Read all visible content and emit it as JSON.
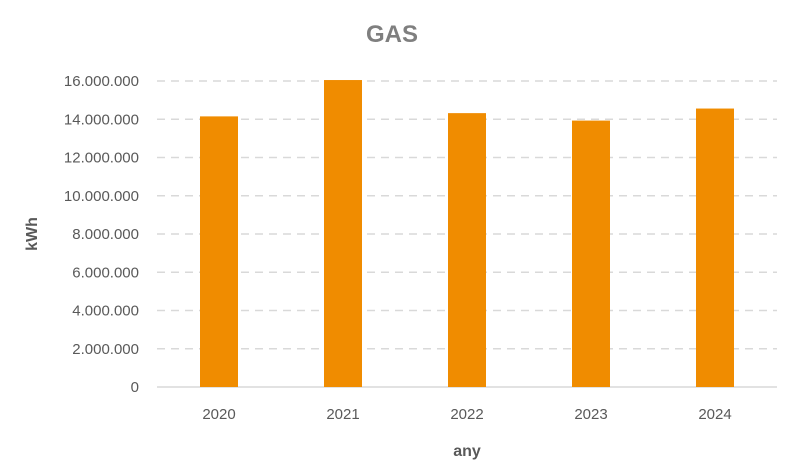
{
  "chart_data": {
    "type": "bar",
    "title": "GAS",
    "xlabel": "any",
    "ylabel": "kWh",
    "categories": [
      "2020",
      "2021",
      "2022",
      "2023",
      "2024"
    ],
    "series": [
      {
        "values": [
          14150000,
          16050000,
          14320000,
          13930000,
          14560000
        ]
      }
    ],
    "ylim": [
      0,
      16000000
    ],
    "yticks": [
      0,
      2000000,
      4000000,
      6000000,
      8000000,
      10000000,
      12000000,
      14000000,
      16000000
    ],
    "ytick_labels": [
      "0",
      "2.000.000",
      "4.000.000",
      "6.000.000",
      "8.000.000",
      "10.000.000",
      "12.000.000",
      "14.000.000",
      "16.000.000"
    ],
    "bar_color": "#f08c00",
    "grid": true,
    "legend": "none"
  }
}
